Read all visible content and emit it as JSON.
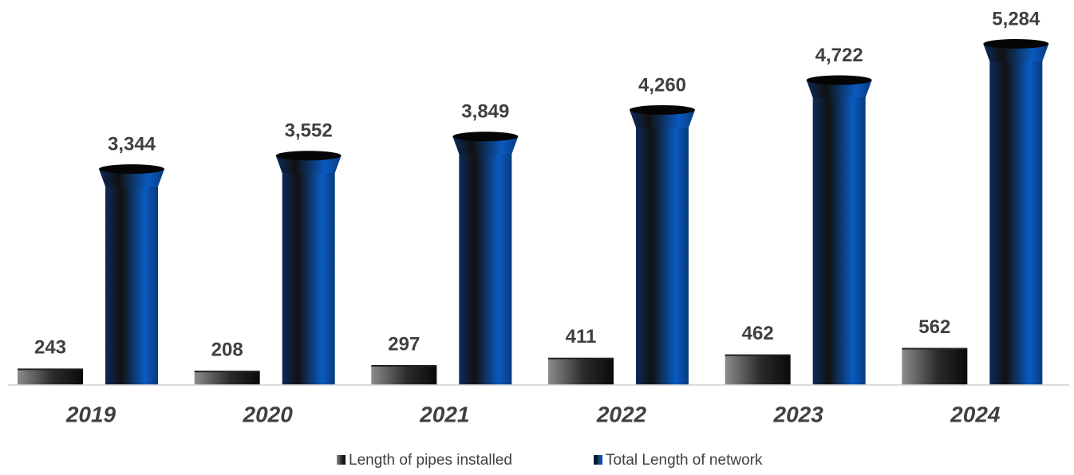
{
  "chart_data": {
    "type": "bar",
    "categories": [
      "2019",
      "2020",
      "2021",
      "2022",
      "2023",
      "2024"
    ],
    "series": [
      {
        "name": "Length of pipes installed",
        "color": "#8c8c8c",
        "values": [
          243,
          208,
          297,
          411,
          462,
          562
        ],
        "value_labels": [
          "243",
          "208",
          "297",
          "411",
          "462",
          "562"
        ]
      },
      {
        "name": "Total Length of network",
        "color": "#0a5ac0",
        "values": [
          3344,
          3552,
          3849,
          4260,
          4722,
          5284
        ],
        "value_labels": [
          "3,344",
          "3,552",
          "3,849",
          "4,260",
          "4,722",
          "5,284"
        ]
      }
    ],
    "legend": "bottom"
  }
}
